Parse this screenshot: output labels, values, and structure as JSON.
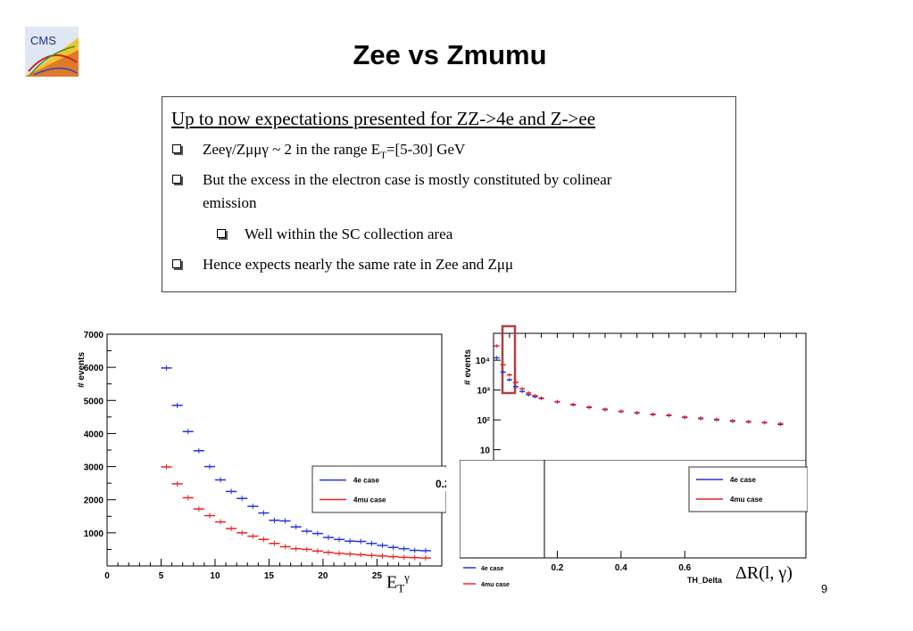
{
  "slide": {
    "title": "Zee vs Zmumu",
    "page_number": "9",
    "logo_text": "CMS"
  },
  "textbox": {
    "heading": "Up to now expectations presented for ZZ->4e and Z->ee",
    "bullets": [
      {
        "pre": "Zeeγ/Zμμγ ~ 2 in the range E",
        "sub": "T",
        "post": "=[5-30] GeV"
      },
      {
        "text1": "But the excess in the electron case is mostly constituted by colinear",
        "text2": "emission"
      },
      {
        "text": "Well within the SC collection area"
      },
      {
        "text": "Hence expects nearly the same rate in Zee and Zμμ"
      }
    ]
  },
  "xlabels": {
    "et_base": "E",
    "et_sub": "T",
    "et_sup": "γ",
    "dr": "ΔR(l, γ)"
  },
  "chart_data": [
    {
      "type": "scatter",
      "ylabel": "# events",
      "xlim": [
        0,
        31
      ],
      "ylim": [
        0,
        7000
      ],
      "x_ticks": [
        "0",
        "5",
        "10",
        "15",
        "20",
        "25"
      ],
      "y_ticks": [
        "1000",
        "2000",
        "3000",
        "4000",
        "5000",
        "6000",
        "7000"
      ],
      "legend": [
        "4e case",
        "4mu case"
      ],
      "colors": {
        "4e case": "#2233dd",
        "4mu case": "#ee2222"
      },
      "series": [
        {
          "name": "4e case",
          "x": [
            5.5,
            6.5,
            7.5,
            8.5,
            9.5,
            10.5,
            11.5,
            12.5,
            13.5,
            14.5,
            15.5,
            16.5,
            17.5,
            18.5,
            19.5,
            20.5,
            21.5,
            22.5,
            23.5,
            24.5,
            25.5,
            26.5,
            27.5,
            28.5,
            29.5
          ],
          "y": [
            5980,
            4850,
            4060,
            3480,
            3000,
            2600,
            2250,
            2040,
            1800,
            1600,
            1380,
            1360,
            1180,
            1050,
            980,
            860,
            800,
            750,
            740,
            680,
            620,
            560,
            520,
            470,
            460
          ]
        },
        {
          "name": "4mu case",
          "x": [
            5.5,
            6.5,
            7.5,
            8.5,
            9.5,
            10.5,
            11.5,
            12.5,
            13.5,
            14.5,
            15.5,
            16.5,
            17.5,
            18.5,
            19.5,
            20.5,
            21.5,
            22.5,
            23.5,
            24.5,
            25.5,
            26.5,
            27.5,
            28.5,
            29.5
          ],
          "y": [
            2990,
            2480,
            2060,
            1720,
            1520,
            1330,
            1130,
            1000,
            900,
            800,
            680,
            580,
            520,
            500,
            450,
            410,
            380,
            360,
            340,
            320,
            300,
            280,
            260,
            250,
            240
          ]
        }
      ]
    },
    {
      "type": "scatter",
      "ylabel": "# events",
      "y_scale": "log",
      "y_ticks": [
        "10",
        "10²",
        "10³",
        "10⁴"
      ],
      "legend": [
        "4e case",
        "4mu case"
      ],
      "colors": {
        "4e case": "#2233dd",
        "4mu case": "#ee2222"
      },
      "series": [
        {
          "name": "4e case",
          "x": [
            0.01,
            0.03,
            0.05,
            0.07,
            0.09,
            0.11,
            0.13,
            0.15,
            0.2,
            0.25,
            0.3,
            0.35,
            0.4,
            0.45,
            0.5,
            0.55,
            0.6,
            0.65,
            0.7,
            0.75,
            0.8,
            0.85,
            0.9
          ],
          "y": [
            12000,
            4000,
            2200,
            1300,
            900,
            700,
            600,
            520,
            400,
            320,
            260,
            220,
            190,
            170,
            150,
            140,
            120,
            110,
            100,
            90,
            85,
            80,
            70
          ]
        },
        {
          "name": "4mu case",
          "x": [
            0.01,
            0.03,
            0.05,
            0.07,
            0.09,
            0.11,
            0.13,
            0.15,
            0.2,
            0.25,
            0.3,
            0.35,
            0.4,
            0.45,
            0.5,
            0.55,
            0.6,
            0.65,
            0.7,
            0.75,
            0.8,
            0.85,
            0.9
          ],
          "y": [
            30000,
            7000,
            3200,
            1800,
            1100,
            800,
            650,
            540,
            410,
            330,
            270,
            230,
            195,
            175,
            155,
            145,
            125,
            115,
            105,
            95,
            88,
            82,
            75
          ]
        }
      ]
    },
    {
      "type": "scatter",
      "x_ticks": [
        "0.2",
        "0.4",
        "0.6"
      ],
      "xlabel": "TH_Delta",
      "legend": [
        "4e case",
        "4mu case"
      ],
      "series": []
    }
  ],
  "fragment_label": "0.2"
}
